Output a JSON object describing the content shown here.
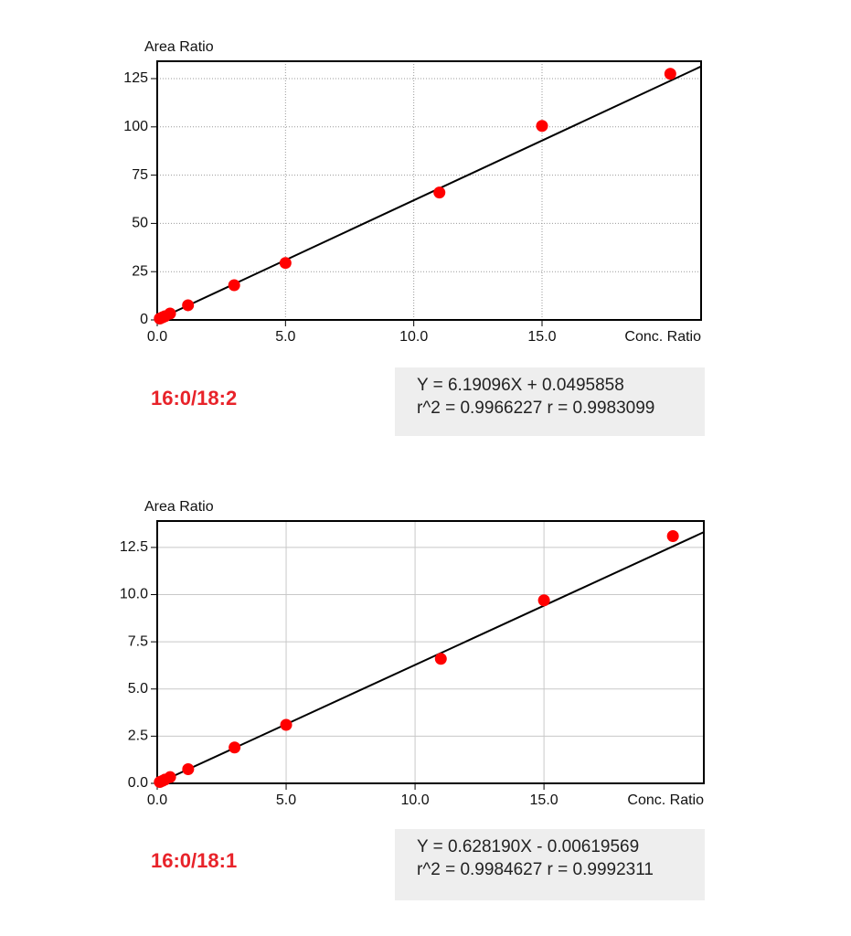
{
  "chart_data": [
    {
      "type": "scatter",
      "y_label": "Area Ratio",
      "x_label": "Conc. Ratio",
      "name": "16:0/18:2",
      "equation": "Y = 6.19096X + 0.0495858",
      "stats": "r^2 = 0.9966227  r = 0.9983099",
      "fit": {
        "slope": 6.19096,
        "intercept": 0.0495858
      },
      "x": [
        0.1,
        0.2,
        0.3,
        0.5,
        1.2,
        3,
        5,
        11,
        15,
        20
      ],
      "y": [
        0.7,
        1.3,
        1.9,
        3.3,
        7.6,
        18,
        29.5,
        66,
        100.5,
        127.5
      ],
      "color": "#ff0000",
      "line_color": "#000000",
      "xlim": [
        0,
        21.2
      ],
      "ylim": [
        0,
        134
      ],
      "xticks": [
        {
          "value": 0,
          "label": "0.0"
        },
        {
          "value": 5,
          "label": "5.0"
        },
        {
          "value": 10,
          "label": "10.0"
        },
        {
          "value": 15,
          "label": "15.0"
        }
      ],
      "yticks": [
        0,
        25,
        50,
        75,
        100,
        125
      ],
      "grid": "dotted"
    },
    {
      "type": "scatter",
      "y_label": "Area Ratio",
      "x_label": "Conc. Ratio",
      "name": "16:0/18:1",
      "equation": "Y = 0.628190X - 0.00619569",
      "stats": "r^2 = 0.9984627  r = 0.9992311",
      "fit": {
        "slope": 0.62819,
        "intercept": -0.00619569
      },
      "x": [
        0.1,
        0.2,
        0.3,
        0.5,
        1.2,
        3,
        5,
        11,
        15,
        20
      ],
      "y": [
        0.07,
        0.13,
        0.2,
        0.33,
        0.75,
        1.9,
        3.1,
        6.6,
        9.7,
        13.1
      ],
      "color": "#ff0000",
      "line_color": "#000000",
      "xlim": [
        0,
        21.2
      ],
      "ylim": [
        0,
        13.9
      ],
      "xticks": [
        {
          "value": 0,
          "label": "0.0"
        },
        {
          "value": 5,
          "label": "5.0"
        },
        {
          "value": 10,
          "label": "10.0"
        },
        {
          "value": 15,
          "label": "15.0"
        }
      ],
      "yticks": [
        {
          "value": 0,
          "label": "0.0"
        },
        2.5,
        {
          "value": 5,
          "label": "5.0"
        },
        7.5,
        {
          "value": 10,
          "label": "10.0"
        },
        12.5
      ],
      "grid": "solid"
    }
  ]
}
